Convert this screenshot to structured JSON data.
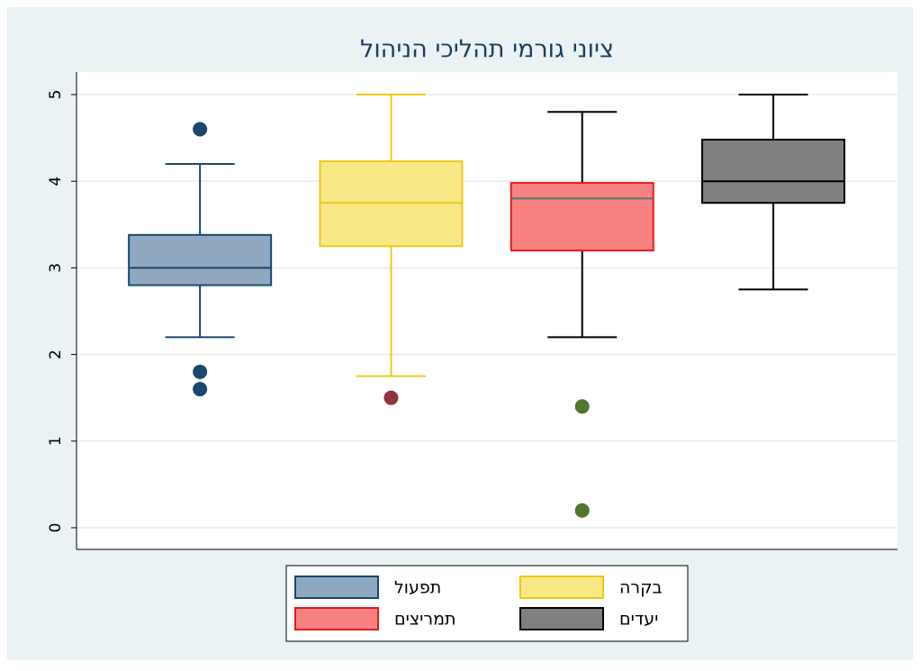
{
  "chart_data": {
    "type": "box",
    "title": "ציוני גורמי תהליכי הניהול",
    "ylim": [
      -0.25,
      5.26
    ],
    "yticks": [
      0,
      1,
      2,
      3,
      4,
      5
    ],
    "grid": true,
    "legend": "bottom",
    "series": [
      {
        "name": "תפעול",
        "color": "#90a8bf",
        "edge_color": "#1a476f",
        "whisker_color": "#1a476f",
        "median_color": "#1a476f",
        "outlier_color": "#1a476f",
        "whisker_low": 2.2,
        "q1": 2.8,
        "median": 3.0,
        "q3": 3.38,
        "whisker_high": 4.2,
        "outliers": [
          4.6,
          1.8,
          1.6
        ]
      },
      {
        "name": "בקרה",
        "color": "#f9e886",
        "edge_color": "#ecc918",
        "whisker_color": "#ecc918",
        "median_color": "#ecc918",
        "outlier_color": "#90353b",
        "whisker_low": 1.75,
        "q1": 3.25,
        "median": 3.75,
        "q3": 4.23,
        "whisker_high": 5.0,
        "outliers": [
          1.5
        ]
      },
      {
        "name": "תמריצים",
        "color": "#f88181",
        "edge_color": "#e41a1c",
        "whisker_color": "#000000",
        "median_color": "#4f7a78",
        "outlier_color": "#55752f",
        "whisker_low": 2.2,
        "q1": 3.2,
        "median": 3.8,
        "q3": 3.98,
        "whisker_high": 4.8,
        "outliers": [
          1.4,
          0.2
        ]
      },
      {
        "name": "יעדים",
        "color": "#808080",
        "edge_color": "#000000",
        "whisker_color": "#000000",
        "median_color": "#000000",
        "outlier_color": "#000000",
        "whisker_low": 2.75,
        "q1": 3.75,
        "median": 4.0,
        "q3": 4.48,
        "whisker_high": 5.0,
        "outliers": []
      }
    ]
  }
}
